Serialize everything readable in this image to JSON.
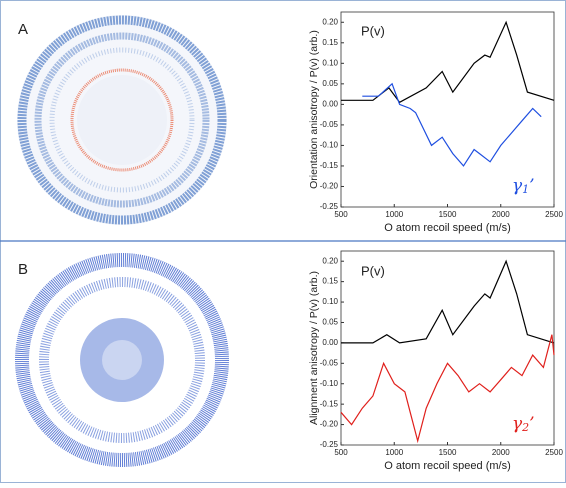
{
  "panels": [
    "A",
    "B"
  ],
  "chart_data": [
    {
      "type": "line",
      "ylabel": "Orientation anisotropy / P(v) (arb.)",
      "xlabel": "O atom recoil speed (m/s)",
      "xlim": [
        500,
        2500
      ],
      "ylim": [
        -0.25,
        0.225
      ],
      "xticks": [
        500,
        1000,
        1500,
        2000,
        2500
      ],
      "yticks": [
        {
          "value": 0.2,
          "label": "0.20"
        },
        0.15,
        {
          "value": 0.1,
          "label": "0.10"
        },
        0.05,
        {
          "value": 0,
          "label": "0.00"
        },
        -0.05,
        {
          "value": -0.1,
          "label": "-0.10"
        },
        -0.15,
        {
          "value": -0.2,
          "label": "-0.20"
        },
        -0.25
      ],
      "series": [
        {
          "name": "P(v)",
          "color": "#000000",
          "x": [
            500,
            800,
            950,
            1050,
            1300,
            1450,
            1550,
            1750,
            1850,
            1900,
            2050,
            2150,
            2250,
            2500
          ],
          "values": [
            0.01,
            0.01,
            0.04,
            0.005,
            0.04,
            0.08,
            0.03,
            0.1,
            0.12,
            0.115,
            0.2,
            0.12,
            0.03,
            0.01
          ]
        },
        {
          "name": "γ",
          "subscript": "1",
          "suffix": "’",
          "color": "#1f4fe0",
          "x": [
            700,
            850,
            980,
            1050,
            1150,
            1200,
            1350,
            1450,
            1550,
            1650,
            1750,
            1800,
            1900,
            2000,
            2100,
            2200,
            2300,
            2380
          ],
          "values": [
            0.02,
            0.02,
            0.05,
            0,
            -0.01,
            -0.02,
            -0.1,
            -0.08,
            -0.12,
            -0.15,
            -0.11,
            -0.12,
            -0.14,
            -0.1,
            -0.07,
            -0.04,
            -0.01,
            -0.03
          ]
        }
      ]
    },
    {
      "type": "line",
      "ylabel": "Alignment anisotropy / P(v) (arb.)",
      "xlabel": "O atom recoil speed (m/s)",
      "xlim": [
        500,
        2500
      ],
      "ylim": [
        -0.25,
        0.225
      ],
      "xticks": [
        500,
        1000,
        1500,
        2000,
        2500
      ],
      "yticks": [
        {
          "value": 0.2,
          "label": "0.20"
        },
        0.15,
        {
          "value": 0.1,
          "label": "0.10"
        },
        0.05,
        {
          "value": 0,
          "label": "0.00"
        },
        -0.05,
        {
          "value": -0.1,
          "label": "-0.10"
        },
        -0.15,
        {
          "value": -0.2,
          "label": "-0.20"
        },
        -0.25
      ],
      "series": [
        {
          "name": "P(v)",
          "color": "#000000",
          "x": [
            500,
            800,
            930,
            1050,
            1300,
            1450,
            1550,
            1750,
            1850,
            1900,
            2050,
            2150,
            2250,
            2500
          ],
          "values": [
            0,
            0,
            0.02,
            0,
            0.01,
            0.08,
            0.02,
            0.09,
            0.12,
            0.11,
            0.2,
            0.12,
            0.02,
            0
          ]
        },
        {
          "name": "γ",
          "subscript": "2",
          "suffix": "’",
          "color": "#e0201c",
          "x": [
            500,
            600,
            700,
            800,
            900,
            1000,
            1100,
            1150,
            1220,
            1300,
            1400,
            1500,
            1600,
            1700,
            1800,
            1900,
            2000,
            2100,
            2200,
            2300,
            2400,
            2480,
            2500
          ],
          "values": [
            -0.17,
            -0.2,
            -0.16,
            -0.13,
            -0.05,
            -0.1,
            -0.12,
            -0.17,
            -0.24,
            -0.16,
            -0.1,
            -0.05,
            -0.08,
            -0.12,
            -0.1,
            -0.12,
            -0.09,
            -0.06,
            -0.08,
            -0.03,
            -0.06,
            0.02,
            -0.03
          ]
        }
      ]
    }
  ]
}
